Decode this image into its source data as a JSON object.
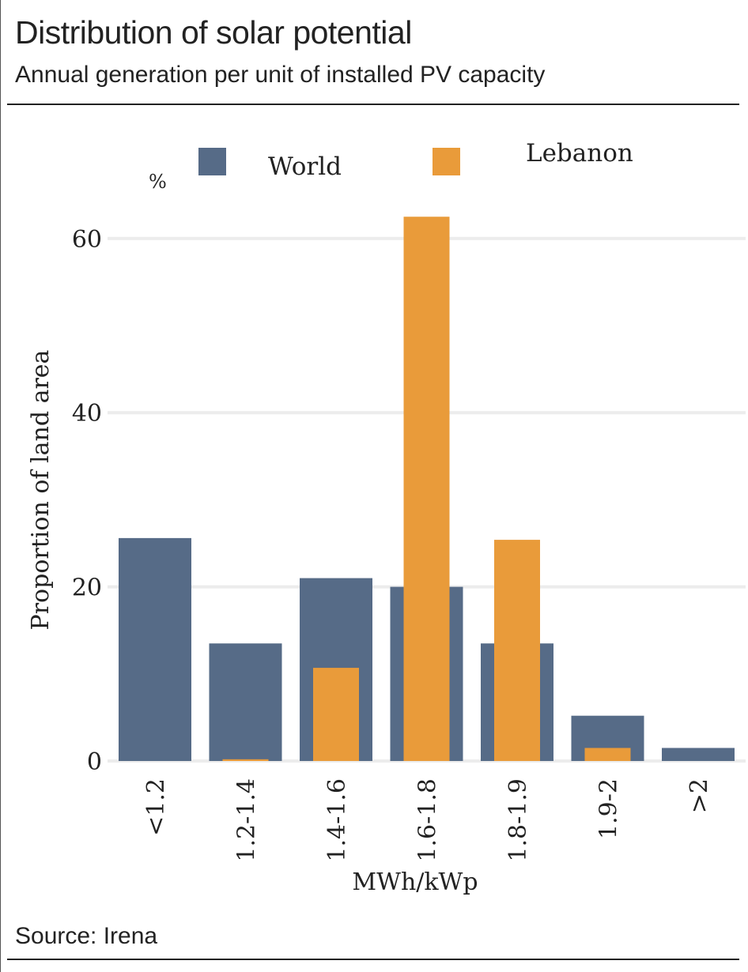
{
  "header": {
    "title": "Distribution of solar potential",
    "subtitle": "Annual generation per unit of installed PV capacity"
  },
  "footer": {
    "source": "Source: Irena"
  },
  "chart_data": {
    "type": "bar",
    "title": "Distribution of solar potential",
    "subtitle": "Annual generation per unit of installed PV capacity",
    "xlabel": "MWh/kWp",
    "ylabel": "Proportion of land area",
    "yunit": "%",
    "categories": [
      "<1.2",
      "1.2-1.4",
      "1.4-1.6",
      "1.6-1.8",
      "1.8-1.9",
      "1.9-2",
      ">2"
    ],
    "series": [
      {
        "name": "World",
        "color": "#566b87",
        "values": [
          25.6,
          13.5,
          21,
          20,
          13.5,
          5.2,
          1.5
        ]
      },
      {
        "name": "Lebanon",
        "color": "#e99b3a",
        "values": [
          0,
          0.2,
          10.7,
          62.5,
          25.4,
          1.5,
          0
        ]
      }
    ],
    "ylim": [
      0,
      65
    ],
    "yticks": [
      0,
      20,
      40,
      60
    ],
    "grid": true,
    "legend": "top"
  }
}
